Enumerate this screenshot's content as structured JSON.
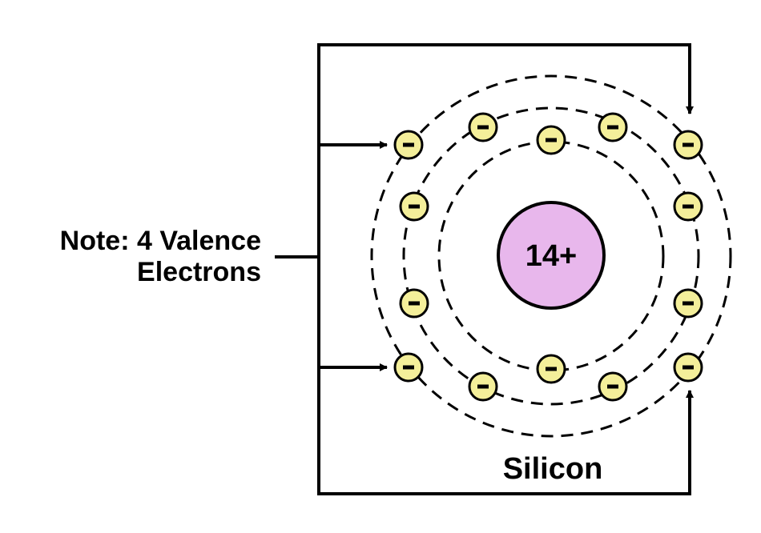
{
  "note": {
    "line1": "Note: 4 Valence",
    "line2": "Electrons"
  },
  "nucleus": {
    "charge": "14+",
    "fill": "#e8b7ec"
  },
  "element_name": "Silicon",
  "electron": {
    "symbol": "−",
    "fill": "#f4ef9a"
  },
  "shells": [
    {
      "electrons": 2
    },
    {
      "electrons": 8
    },
    {
      "electrons": 4,
      "valence": true
    }
  ]
}
